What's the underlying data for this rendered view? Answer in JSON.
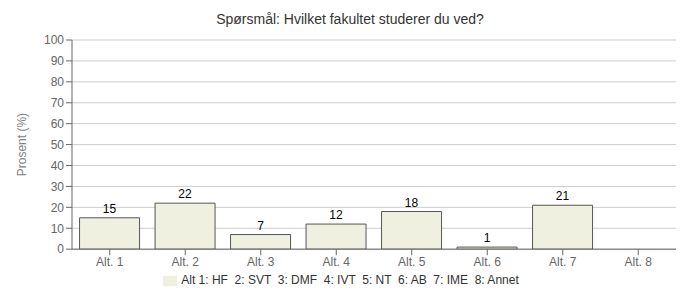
{
  "chart_data": {
    "type": "bar",
    "title": "Spørsmål: Hvilket fakultet studerer du ved?",
    "categories": [
      "Alt. 1",
      "Alt. 2",
      "Alt. 3",
      "Alt. 4",
      "Alt. 5",
      "Alt. 6",
      "Alt. 7",
      "Alt. 8"
    ],
    "series": [
      {
        "name": "Alt 1: HF  2: SVT  3: DMF  4: IVT  5: NT  6: AB  7: IME  8: Annet",
        "color": "#f0f0e0",
        "values": [
          15,
          22,
          7,
          12,
          18,
          1,
          21,
          0
        ]
      }
    ],
    "ylabel": "Prosent (%)",
    "ylim": [
      0,
      100
    ],
    "yticks": [
      0,
      10,
      20,
      30,
      40,
      50,
      60,
      70,
      80,
      90,
      100
    ],
    "grid": true,
    "legend": "bottom",
    "data_labels": true
  }
}
